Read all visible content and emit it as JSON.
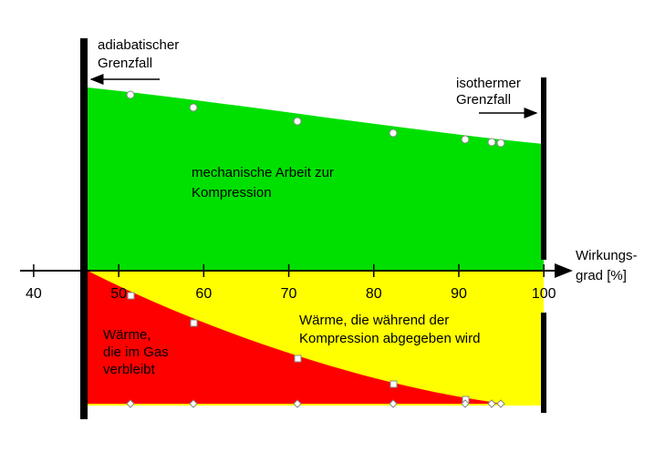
{
  "chart_data": {
    "type": "area",
    "x_label": [
      "Wirkungs-",
      "grad [%]"
    ],
    "xlim": [
      38.4,
      103.2
    ],
    "xticks": [
      40,
      50,
      60,
      70,
      80,
      90,
      100
    ],
    "annotations": [
      [
        "adiabatischer",
        "Grenzfall"
      ],
      [
        "isothermer",
        "Grenzfall"
      ],
      [
        "mechanische Arbeit zur",
        "Kompression"
      ],
      [
        "Wärme, die während der",
        "Kompression abgegeben wird"
      ],
      [
        "Wärme,",
        "die im Gas",
        "verbleibt"
      ]
    ]
  }
}
